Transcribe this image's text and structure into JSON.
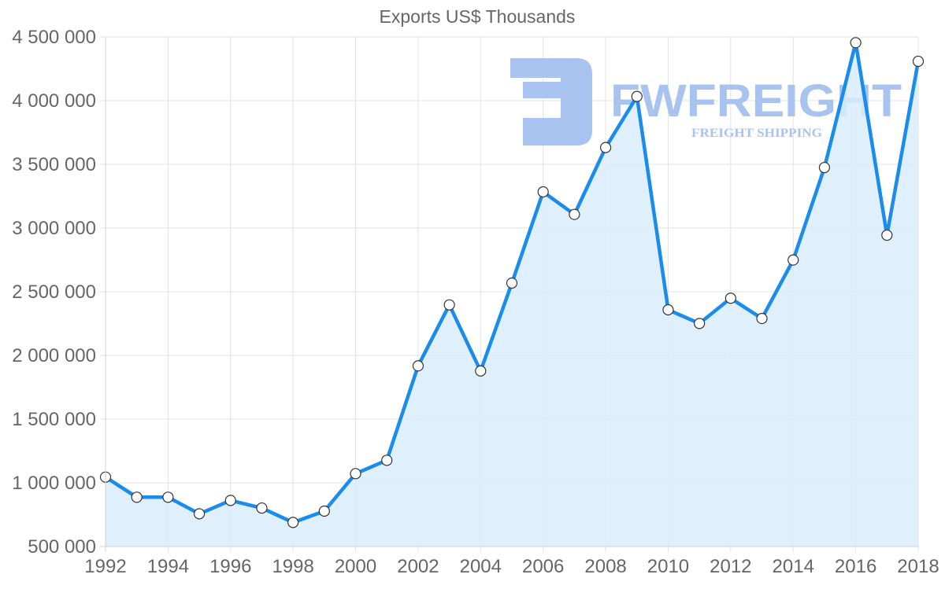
{
  "chart_data": {
    "type": "line",
    "title": "Exports US$ Thousands",
    "xlabel": "",
    "ylabel": "",
    "x": [
      1992,
      1993,
      1994,
      1995,
      1996,
      1997,
      1998,
      1999,
      2000,
      2001,
      2002,
      2003,
      2004,
      2005,
      2006,
      2007,
      2008,
      2009,
      2010,
      2011,
      2012,
      2013,
      2014,
      2015,
      2016,
      2017,
      2018
    ],
    "series": [
      {
        "name": "Exports US$ Thousands",
        "values": [
          1045000,
          887000,
          887000,
          757000,
          862000,
          802000,
          689000,
          778000,
          1072000,
          1177000,
          1918000,
          2397000,
          1878000,
          2568000,
          3284000,
          3107000,
          3632000,
          4033000,
          2358000,
          2251000,
          2449000,
          2290000,
          2749000,
          3475000,
          4455000,
          2944000,
          4309000
        ]
      }
    ],
    "xlim": [
      1992,
      2018
    ],
    "ylim": [
      500000,
      4500000
    ],
    "yticks": [
      500000,
      1000000,
      1500000,
      2000000,
      2500000,
      3000000,
      3500000,
      4000000,
      4500000
    ],
    "ytick_labels": [
      "500 000",
      "1 000 000",
      "1 500 000",
      "2 000 000",
      "2 500 000",
      "3 000 000",
      "3 500 000",
      "4 000 000",
      "4 500 000"
    ],
    "xtick_labels": [
      "1992",
      "1994",
      "1996",
      "1998",
      "2000",
      "2002",
      "2004",
      "2006",
      "2008",
      "2010",
      "2012",
      "2014",
      "2016",
      "2018"
    ],
    "grid": true,
    "legend": "none",
    "fill": true
  },
  "colors": {
    "line": "#1a8ced",
    "fill": "#d9ecfb",
    "point_fill": "#ffffff",
    "point_stroke": "#333333",
    "text": "#666666",
    "watermark": "#a9c3f0"
  },
  "watermark": {
    "brand": "FWFREIGHT",
    "tagline": "FREIGHT SHIPPING"
  }
}
